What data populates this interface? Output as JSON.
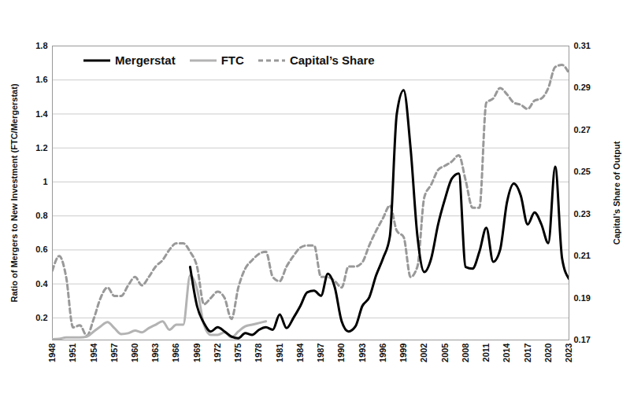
{
  "chart_data": {
    "type": "line",
    "y_label": "Ratio of Mergers to New Investment (FTC/Mergerstat)",
    "y2_label": "Capital’s Share of Output",
    "x": [
      1948,
      1949,
      1950,
      1951,
      1952,
      1953,
      1954,
      1955,
      1956,
      1957,
      1958,
      1959,
      1960,
      1961,
      1962,
      1963,
      1964,
      1965,
      1966,
      1967,
      1968,
      1969,
      1970,
      1971,
      1972,
      1973,
      1974,
      1975,
      1976,
      1977,
      1978,
      1979,
      1980,
      1981,
      1982,
      1983,
      1984,
      1985,
      1986,
      1987,
      1988,
      1989,
      1990,
      1991,
      1992,
      1993,
      1994,
      1995,
      1996,
      1997,
      1998,
      1999,
      2000,
      2001,
      2002,
      2003,
      2004,
      2005,
      2006,
      2007,
      2008,
      2009,
      2010,
      2011,
      2012,
      2013,
      2014,
      2015,
      2016,
      2017,
      2018,
      2019,
      2020,
      2021,
      2022,
      2023
    ],
    "xlim": [
      1948,
      2023
    ],
    "xticks": [
      1948,
      1951,
      1954,
      1957,
      1960,
      1963,
      1966,
      1969,
      1972,
      1975,
      1978,
      1981,
      1984,
      1987,
      1990,
      1993,
      1996,
      1999,
      2002,
      2005,
      2008,
      2011,
      2014,
      2017,
      2020,
      2023
    ],
    "ylim": [
      0.07,
      1.8
    ],
    "yticks": [
      0.2,
      0.4,
      0.6,
      0.8,
      1,
      1.2,
      1.4,
      1.6,
      1.8
    ],
    "y2lim": [
      0.17,
      0.31
    ],
    "y2ticks": [
      0.17,
      0.19,
      0.21,
      0.23,
      0.25,
      0.27,
      0.29,
      0.31
    ],
    "grid": true,
    "legend": "top-left",
    "series": [
      {
        "name": "Mergerstat",
        "color": "#000000",
        "line_style": "solid",
        "values": [
          null,
          null,
          null,
          null,
          null,
          null,
          null,
          null,
          null,
          null,
          null,
          null,
          null,
          null,
          null,
          null,
          null,
          null,
          null,
          null,
          0.5,
          0.27,
          0.17,
          0.12,
          0.145,
          0.12,
          0.09,
          0.08,
          0.11,
          0.1,
          0.13,
          0.145,
          0.13,
          0.22,
          0.14,
          0.2,
          0.27,
          0.35,
          0.36,
          0.33,
          0.46,
          0.38,
          0.18,
          0.12,
          0.15,
          0.27,
          0.32,
          0.45,
          0.55,
          0.68,
          1.4,
          1.54,
          1.2,
          0.68,
          0.47,
          0.55,
          0.75,
          0.9,
          1.02,
          1.05,
          0.5,
          0.49,
          0.59,
          0.73,
          0.53,
          0.6,
          0.88,
          0.99,
          0.92,
          0.75,
          0.82,
          0.75,
          0.64,
          1.09,
          0.55,
          0.43
        ]
      },
      {
        "name": "FTC",
        "color": "#b3b3b3",
        "line_style": "solid",
        "values": [
          0.075,
          0.077,
          0.085,
          0.085,
          0.085,
          0.09,
          0.12,
          0.15,
          0.175,
          0.14,
          0.105,
          0.11,
          0.125,
          0.115,
          0.14,
          0.16,
          0.18,
          0.13,
          0.16,
          0.16,
          0.45,
          0.37,
          0.16,
          0.1,
          0.1,
          0.115,
          0.085,
          0.12,
          0.15,
          0.16,
          0.17,
          0.18,
          null,
          null,
          null,
          null,
          null,
          null,
          null,
          null,
          null,
          null,
          null,
          null,
          null,
          null,
          null,
          null,
          null,
          null,
          null,
          null,
          null,
          null,
          null,
          null,
          null,
          null,
          null,
          null,
          null,
          null,
          null,
          null,
          null,
          null,
          null,
          null,
          null,
          null,
          null,
          null,
          null,
          null,
          null,
          null
        ]
      },
      {
        "name": "Capital’s Share",
        "color": "#999999",
        "line_style": "dashed",
        "axis": "y2",
        "values": [
          0.203,
          0.21,
          0.2,
          0.176,
          0.177,
          0.172,
          0.18,
          0.19,
          0.195,
          0.191,
          0.191,
          0.196,
          0.2,
          0.196,
          0.2,
          0.205,
          0.208,
          0.213,
          0.216,
          0.216,
          0.212,
          0.205,
          0.187,
          0.19,
          0.193,
          0.19,
          0.18,
          0.195,
          0.204,
          0.208,
          0.211,
          0.212,
          0.2,
          0.198,
          0.205,
          0.21,
          0.214,
          0.215,
          0.215,
          0.2,
          0.2,
          0.198,
          0.195,
          0.205,
          0.205,
          0.207,
          0.215,
          0.222,
          0.228,
          0.234,
          0.222,
          0.219,
          0.2,
          0.205,
          0.238,
          0.244,
          0.251,
          0.253,
          0.255,
          0.258,
          0.246,
          0.233,
          0.233,
          0.283,
          0.285,
          0.29,
          0.287,
          0.283,
          0.282,
          0.28,
          0.284,
          0.285,
          0.29,
          0.3,
          0.301,
          0.297
        ]
      }
    ]
  }
}
